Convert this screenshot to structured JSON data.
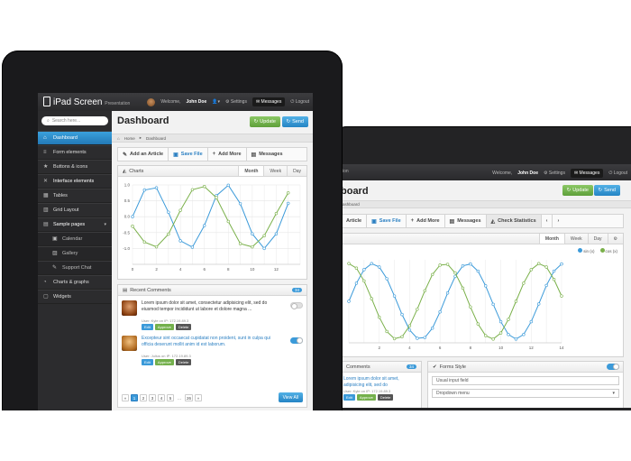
{
  "front": {
    "brand": {
      "title": "iPad Screen",
      "subtitle": "Presentation"
    },
    "topbar": {
      "welcome": "Welcome,",
      "user": "John Doe",
      "settings": "Settings",
      "messages": "Messages",
      "logout": "Logout"
    },
    "search": {
      "placeholder": "Search here..."
    },
    "sidebar": {
      "items": [
        {
          "label": "Dashboard",
          "icon": "home-icon"
        },
        {
          "label": "Form elements",
          "icon": "list-icon"
        },
        {
          "label": "Buttons & icons",
          "icon": "star-icon"
        },
        {
          "label": "Interface elements",
          "icon": "tools-icon"
        },
        {
          "label": "Tables",
          "icon": "table-icon"
        },
        {
          "label": "Grid Layout",
          "icon": "grid-icon"
        },
        {
          "label": "Sample pages",
          "icon": "pages-icon"
        },
        {
          "label": "Calendar",
          "icon": "calendar-icon"
        },
        {
          "label": "Gallery",
          "icon": "gallery-icon"
        },
        {
          "label": "Support Chat",
          "icon": "chat-icon"
        },
        {
          "label": "Charts & graphs",
          "icon": "chart-icon"
        },
        {
          "label": "Widgets",
          "icon": "widgets-icon"
        }
      ]
    },
    "page_title": "Dashboard",
    "buttons": {
      "update": "Update",
      "send": "Send"
    },
    "breadcrumb": {
      "home": "Home",
      "current": "Dashboard"
    },
    "toolbar": {
      "add_article": "Add an Article",
      "save_file": "Save File",
      "add_more": "Add More",
      "messages": "Messages"
    },
    "charts_panel": {
      "title": "Charts",
      "tabs": [
        "Month",
        "Week",
        "Day"
      ]
    },
    "comments": {
      "title": "Recent Comments",
      "count": "34",
      "items": [
        {
          "text": "Lorem ipsum dolor sit amet, consectetur adipisicing elit, sed do eiusmod tempor incididunt ut labore et dolore magna ...",
          "meta": "User: Kyle on IP: 172.19.89.3"
        },
        {
          "text": "Excepteur sint occaecat cupidatat non proident, sunt in culpa qui officia deserunt mollit anim id est laborum.",
          "meta": "User: Julius on IP: 172.19.89.3"
        }
      ],
      "actions": {
        "edit": "Edit",
        "approve": "Approve",
        "delete": "Delete"
      },
      "pages": [
        "1",
        "2",
        "3",
        "4",
        "5",
        "...",
        "26"
      ],
      "view_all": "View All"
    }
  },
  "back": {
    "page_title_partial": "board",
    "breadcrumb_partial": "ashboard",
    "topbar": {
      "welcome": "Welcome,",
      "user": "John Doe",
      "settings": "Settings",
      "messages": "Messages",
      "logout": "Logout"
    },
    "buttons": {
      "update": "Update",
      "send": "Send"
    },
    "toolbar": {
      "article": "Article",
      "save_file": "Save File",
      "add_more": "Add More",
      "messages": "Messages",
      "check_stats": "Check Statistics"
    },
    "chart_tabs": [
      "Month",
      "Week",
      "Day"
    ],
    "legend": [
      "sin (x)",
      "cos (x)"
    ],
    "comments_title": "Comments",
    "comments_count": "34",
    "comment": {
      "text": "Lorem ipsum dolor sit amet, adipisicing elit, sed do",
      "meta": "User: Kyle on IP: 172.19.89.3"
    },
    "actions": {
      "edit": "Edit",
      "approve": "Approve",
      "delete": "Delete"
    },
    "forms": {
      "title": "Forms Style",
      "input": "Usual input field",
      "dropdown": "Dropdown menu"
    }
  },
  "colors": {
    "blue": "#3b9ad9",
    "green": "#7ab04a",
    "sidebar": "#2c2c2e",
    "active": "#2a8ad0"
  },
  "chart_data": [
    {
      "type": "line",
      "xlim": [
        0,
        14
      ],
      "ylim": [
        -1.5,
        1.0
      ],
      "xticks": [
        0,
        2,
        4,
        6,
        8,
        10,
        12
      ],
      "yticks": [
        1.0,
        0.5,
        0,
        -0.5,
        -1.0
      ],
      "series": [
        {
          "color": "#3b9ad9",
          "x": [
            0,
            1,
            2,
            3,
            4,
            5,
            6,
            7,
            8,
            9,
            10,
            11,
            12,
            13
          ],
          "y": [
            0.0,
            0.84,
            0.91,
            0.14,
            -0.76,
            -0.96,
            -0.28,
            0.66,
            0.99,
            0.41,
            -0.54,
            -1.0,
            -0.54,
            0.42
          ]
        },
        {
          "color": "#7ab04a",
          "x": [
            0,
            1,
            2,
            3,
            4,
            5,
            6,
            7,
            8,
            9,
            10,
            11,
            12,
            13
          ],
          "y": [
            -0.3,
            -0.8,
            -0.95,
            -0.55,
            0.2,
            0.85,
            0.95,
            0.6,
            -0.15,
            -0.85,
            -0.95,
            -0.6,
            0.1,
            0.75
          ]
        }
      ]
    },
    {
      "type": "line",
      "xlim": [
        0,
        14
      ],
      "ylim": [
        -1.1,
        1.1
      ],
      "xticks": [
        2,
        4,
        6,
        8,
        10,
        12,
        14
      ],
      "series": [
        {
          "name": "sin (x)",
          "color": "#3b9ad9",
          "x": [
            0,
            0.5,
            1,
            1.5,
            2,
            2.5,
            3,
            3.5,
            4,
            4.5,
            5,
            5.5,
            6,
            6.5,
            7,
            7.5,
            8,
            8.5,
            9,
            9.5,
            10,
            10.5,
            11,
            11.5,
            12,
            12.5,
            13,
            13.5,
            14
          ],
          "y": [
            0,
            0.48,
            0.84,
            1.0,
            0.91,
            0.6,
            0.14,
            -0.35,
            -0.76,
            -0.98,
            -0.96,
            -0.71,
            -0.28,
            0.22,
            0.66,
            0.94,
            0.99,
            0.8,
            0.41,
            -0.08,
            -0.54,
            -0.88,
            -1.0,
            -0.88,
            -0.54,
            -0.07,
            0.42,
            0.8,
            0.99
          ]
        },
        {
          "name": "cos (x)",
          "color": "#7ab04a",
          "x": [
            0,
            0.5,
            1,
            1.5,
            2,
            2.5,
            3,
            3.5,
            4,
            4.5,
            5,
            5.5,
            6,
            6.5,
            7,
            7.5,
            8,
            8.5,
            9,
            9.5,
            10,
            10.5,
            11,
            11.5,
            12,
            12.5,
            13,
            13.5,
            14
          ],
          "y": [
            1.0,
            0.88,
            0.54,
            0.07,
            -0.42,
            -0.8,
            -0.99,
            -0.94,
            -0.65,
            -0.21,
            0.28,
            0.71,
            0.96,
            0.98,
            0.75,
            0.35,
            -0.15,
            -0.6,
            -0.91,
            -1.0,
            -0.84,
            -0.48,
            0.0,
            0.48,
            0.84,
            1.0,
            0.91,
            0.58,
            0.14
          ]
        }
      ]
    }
  ]
}
